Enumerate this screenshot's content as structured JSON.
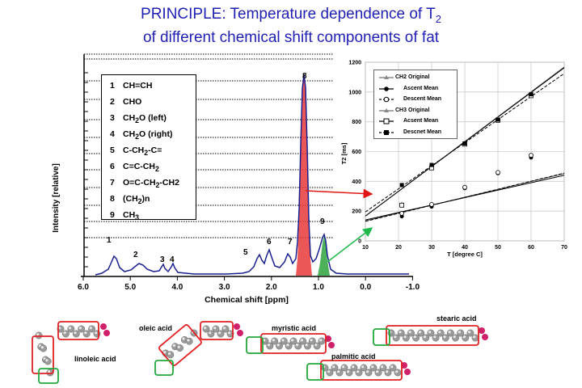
{
  "title": {
    "line1_prefix": "PRINCIPLE: Temperature dependence of T",
    "line1_sub": "2",
    "line2": "of different chemical shift components of fat"
  },
  "spectrum": {
    "ylabel": "Intensity [relative]",
    "xlabel": "Chemical shift [ppm]",
    "xticks": [
      "6.0",
      "5.0",
      "4.0",
      "3.0",
      "2.0",
      "1.0",
      "0.0",
      "-1.0"
    ],
    "peak_labels": [
      "1",
      "2",
      "3",
      "4",
      "5",
      "6",
      "7",
      "8",
      "9"
    ]
  },
  "legend": [
    {
      "num": "1",
      "pre": "CH=CH",
      "sub": "",
      "post": ""
    },
    {
      "num": "2",
      "pre": "CHO",
      "sub": "",
      "post": ""
    },
    {
      "num": "3",
      "pre": "CH",
      "sub": "2",
      "post": "O (left)"
    },
    {
      "num": "4",
      "pre": "CH",
      "sub": "2",
      "post": "O (right)"
    },
    {
      "num": "5",
      "pre": "C-CH",
      "sub": "2",
      "post": "-C="
    },
    {
      "num": "6",
      "pre": "C=C-CH",
      "sub": "2",
      "post": ""
    },
    {
      "num": "7",
      "pre": "O=C-CH",
      "sub": "2",
      "post": "-CH2"
    },
    {
      "num": "8",
      "pre": "(CH",
      "sub": "2",
      "post": ")n"
    },
    {
      "num": "9",
      "pre": "CH",
      "sub": "3",
      "post": ""
    }
  ],
  "t2_chart": {
    "ylabel": "T2 [ms]",
    "xlabel": "T [degree C]",
    "xticks": [
      "10",
      "20",
      "30",
      "40",
      "50",
      "60",
      "70"
    ],
    "yticks": [
      "0",
      "200",
      "400",
      "600",
      "800",
      "1000",
      "1200"
    ],
    "legend": [
      "CH2 Original",
      "Ascent Mean",
      "Descent Mean",
      "CH3 Original",
      "Acsent Mean",
      "Descnet Mean"
    ]
  },
  "chart_data": {
    "type": "line",
    "xlabel": "T [degree C]",
    "ylabel": "T2 [ms]",
    "xlim": [
      10,
      70
    ],
    "ylim": [
      0,
      1200
    ],
    "x": [
      21,
      30,
      40,
      50,
      60
    ],
    "series": [
      {
        "name": "CH2 Original",
        "values": [
          175,
          240,
          350,
          455,
          565
        ]
      },
      {
        "name": "Ascent Mean",
        "values": [
          165,
          230,
          355,
          455,
          560
        ]
      },
      {
        "name": "Descent Mean",
        "values": [
          185,
          245,
          360,
          460,
          575
        ]
      },
      {
        "name": "CH3 Original",
        "values": [
          250,
          500,
          660,
          820,
          990
        ]
      },
      {
        "name": "Acsent Mean",
        "values": [
          240,
          490,
          650,
          810,
          975
        ]
      },
      {
        "name": "Descnet Mean",
        "values": [
          375,
          510,
          655,
          815,
          985
        ]
      }
    ]
  },
  "molecules": {
    "names": [
      "linoleic acid",
      "oleic acid",
      "myristic acid",
      "stearic acid",
      "palmitic acid"
    ]
  },
  "colors": {
    "title": "#1f1fb4",
    "spectrum": "#1a1f8f",
    "ch2_fill": "#e83a3a",
    "ch3_fill": "#2ea33e",
    "arrow_red": "#e01515",
    "arrow_green": "#1fb84a"
  }
}
